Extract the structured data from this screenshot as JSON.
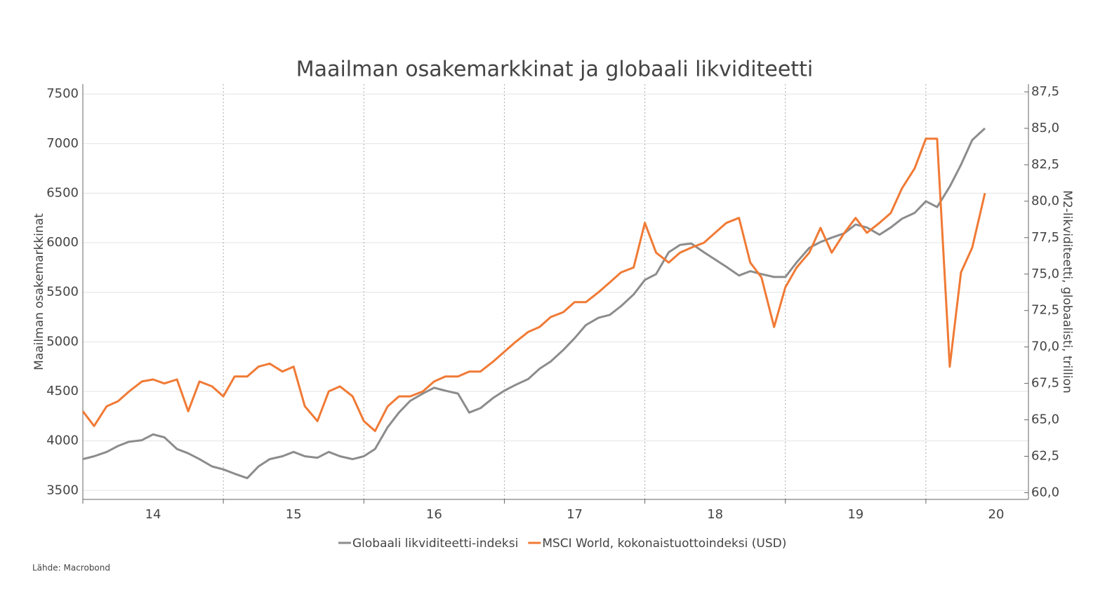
{
  "chart_data": {
    "type": "line",
    "title": "Maailman osakemarkkinat ja globaali likviditeetti",
    "ylabel": "Maailman osakemarkkinat",
    "y2label": "M2-likviditeetti, globaalisti, trillion",
    "source": "Lähde: Macrobond",
    "legend": "bottom",
    "grid": true,
    "xlim": [
      14.0,
      20.73
    ],
    "xticks": [
      {
        "value": 14.5,
        "label": "14"
      },
      {
        "value": 15.5,
        "label": "15"
      },
      {
        "value": 16.5,
        "label": "16"
      },
      {
        "value": 17.5,
        "label": "17"
      },
      {
        "value": 18.5,
        "label": "18"
      },
      {
        "value": 19.5,
        "label": "19"
      },
      {
        "value": 20.5,
        "label": "20"
      }
    ],
    "ylim": [
      3410,
      7600
    ],
    "yticks": [
      3500,
      4000,
      4500,
      5000,
      5500,
      6000,
      6500,
      7000,
      7500
    ],
    "y2lim": [
      59.54,
      88.03
    ],
    "y2ticks": [
      {
        "value": 60,
        "label": "60,0"
      },
      {
        "value": 62.5,
        "label": "62,5"
      },
      {
        "value": 65,
        "label": "65,0"
      },
      {
        "value": 67.5,
        "label": "67,5"
      },
      {
        "value": 70,
        "label": "70,0"
      },
      {
        "value": 72.5,
        "label": "72,5"
      },
      {
        "value": 75,
        "label": "75,0"
      },
      {
        "value": 77.5,
        "label": "77,5"
      },
      {
        "value": 80,
        "label": "80,0"
      },
      {
        "value": 82.5,
        "label": "82,5"
      },
      {
        "value": 85,
        "label": "85,0"
      },
      {
        "value": 87.5,
        "label": "87,5"
      }
    ],
    "x": [
      14,
      14.08,
      14.17,
      14.25,
      14.33,
      14.42,
      14.5,
      14.58,
      14.67,
      14.75,
      14.83,
      14.92,
      15,
      15.08,
      15.17,
      15.25,
      15.33,
      15.42,
      15.5,
      15.58,
      15.67,
      15.75,
      15.83,
      15.92,
      16,
      16.08,
      16.17,
      16.25,
      16.33,
      16.42,
      16.5,
      16.58,
      16.67,
      16.75,
      16.83,
      16.92,
      17,
      17.08,
      17.17,
      17.25,
      17.33,
      17.42,
      17.5,
      17.58,
      17.67,
      17.75,
      17.83,
      17.92,
      18,
      18.08,
      18.17,
      18.25,
      18.33,
      18.42,
      18.5,
      18.58,
      18.67,
      18.75,
      18.83,
      18.92,
      19,
      19.08,
      19.17,
      19.25,
      19.33,
      19.42,
      19.5,
      19.58,
      19.67,
      19.75,
      19.83,
      19.92,
      20,
      20.08,
      20.17,
      20.25,
      20.33,
      20.42
    ],
    "series": [
      {
        "name": "Globaali likviditeetti-indeksi",
        "color": "#8c8c8c",
        "axis": "y2",
        "values": [
          62.3,
          62.5,
          62.8,
          63.2,
          63.5,
          63.6,
          64.0,
          63.8,
          63.0,
          62.7,
          62.3,
          61.8,
          61.6,
          61.3,
          61.0,
          61.8,
          62.3,
          62.5,
          62.8,
          62.5,
          62.4,
          62.8,
          62.5,
          62.3,
          62.5,
          63.0,
          64.5,
          65.5,
          66.3,
          66.8,
          67.2,
          67.0,
          66.8,
          65.5,
          65.8,
          66.5,
          67.0,
          67.4,
          67.8,
          68.5,
          69.0,
          69.8,
          70.6,
          71.5,
          72.0,
          72.2,
          72.8,
          73.6,
          74.6,
          75.0,
          76.5,
          77.0,
          77.1,
          76.5,
          76.0,
          75.5,
          74.9,
          75.2,
          75.0,
          74.8,
          74.8,
          75.8,
          76.8,
          77.2,
          77.5,
          77.8,
          78.4,
          78.2,
          77.7,
          78.2,
          78.8,
          79.2,
          80.0,
          79.6,
          81.0,
          82.5,
          84.2,
          85.0
        ]
      },
      {
        "name": "MSCI World, kokonaistuottoindeksi (USD)",
        "color": "#f07a35",
        "values": [
          4300,
          4150,
          4350,
          4400,
          4500,
          4600,
          4620,
          4580,
          4620,
          4300,
          4600,
          4550,
          4450,
          4650,
          4650,
          4750,
          4780,
          4700,
          4750,
          4350,
          4200,
          4500,
          4550,
          4450,
          4200,
          4100,
          4350,
          4450,
          4450,
          4500,
          4600,
          4650,
          4650,
          4700,
          4700,
          4800,
          4900,
          5000,
          5100,
          5150,
          5250,
          5300,
          5400,
          5400,
          5500,
          5600,
          5700,
          5750,
          6200,
          5900,
          5800,
          5900,
          5950,
          6000,
          6100,
          6200,
          6250,
          5800,
          5650,
          5150,
          5550,
          5750,
          5900,
          6150,
          5900,
          6100,
          6250,
          6100,
          6200,
          6300,
          6550,
          6750,
          7050,
          7050,
          4750,
          5700,
          5950,
          6500
        ]
      }
    ]
  }
}
